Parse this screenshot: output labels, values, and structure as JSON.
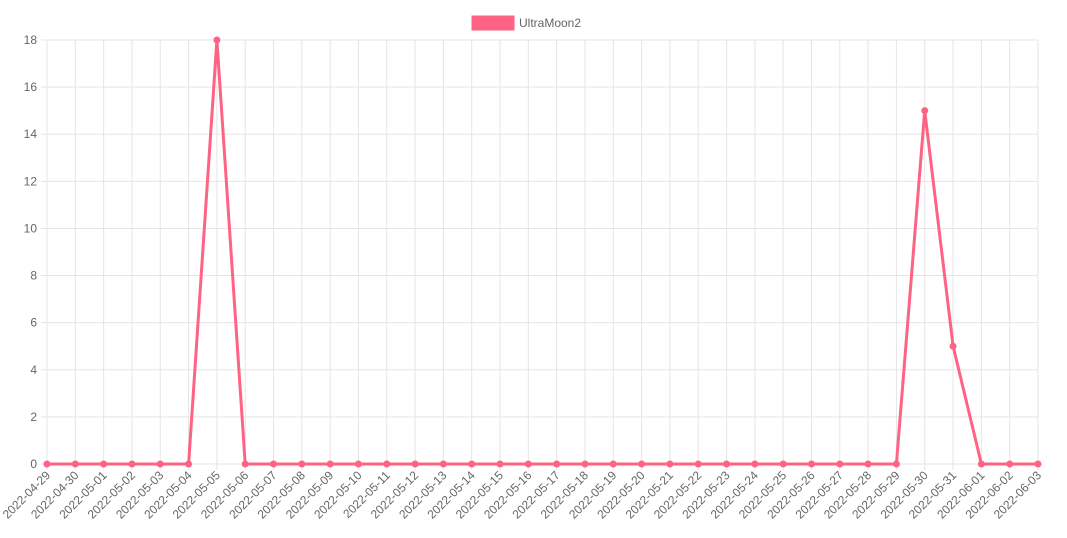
{
  "chart_data": {
    "type": "line",
    "title": "",
    "xlabel": "",
    "ylabel": "",
    "categories": [
      "2022-04-29",
      "2022-04-30",
      "2022-05-01",
      "2022-05-02",
      "2022-05-03",
      "2022-05-04",
      "2022-05-05",
      "2022-05-06",
      "2022-05-07",
      "2022-05-08",
      "2022-05-09",
      "2022-05-10",
      "2022-05-11",
      "2022-05-12",
      "2022-05-13",
      "2022-05-14",
      "2022-05-15",
      "2022-05-16",
      "2022-05-17",
      "2022-05-18",
      "2022-05-19",
      "2022-05-20",
      "2022-05-21",
      "2022-05-22",
      "2022-05-23",
      "2022-05-24",
      "2022-05-25",
      "2022-05-26",
      "2022-05-27",
      "2022-05-28",
      "2022-05-29",
      "2022-05-30",
      "2022-05-31",
      "2022-06-01",
      "2022-06-02",
      "2022-06-03"
    ],
    "series": [
      {
        "name": "UltraMoon2",
        "color": "#ff6384",
        "values": [
          0,
          0,
          0,
          0,
          0,
          0,
          18,
          0,
          0,
          0,
          0,
          0,
          0,
          0,
          0,
          0,
          0,
          0,
          0,
          0,
          0,
          0,
          0,
          0,
          0,
          0,
          0,
          0,
          0,
          0,
          0,
          15,
          5,
          0,
          0,
          0
        ]
      }
    ],
    "ylim": [
      0,
      18
    ],
    "yticks": [
      0,
      2,
      4,
      6,
      8,
      10,
      12,
      14,
      16,
      18
    ],
    "grid": true,
    "legend_position": "top"
  }
}
